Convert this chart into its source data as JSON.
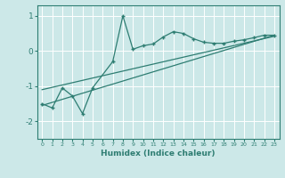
{
  "xlabel": "Humidex (Indice chaleur)",
  "ylabel": "",
  "bg_color": "#cce8e8",
  "line_color": "#2e7d72",
  "xlim": [
    -0.5,
    23.5
  ],
  "ylim": [
    -2.5,
    1.3
  ],
  "x_ticks": [
    0,
    1,
    2,
    3,
    4,
    5,
    6,
    7,
    8,
    9,
    10,
    11,
    12,
    13,
    14,
    15,
    16,
    17,
    18,
    19,
    20,
    21,
    22,
    23
  ],
  "y_ticks": [
    -2,
    -1,
    0,
    1
  ],
  "main_x": [
    0,
    1,
    2,
    3,
    4,
    5,
    7,
    8,
    9,
    10,
    11,
    12,
    13,
    14,
    15,
    16,
    17,
    18,
    19,
    20,
    21,
    22,
    23
  ],
  "main_y": [
    -1.5,
    -1.62,
    -1.05,
    -1.28,
    -1.78,
    -1.05,
    -0.3,
    1.0,
    0.05,
    0.15,
    0.2,
    0.4,
    0.55,
    0.5,
    0.35,
    0.25,
    0.22,
    0.22,
    0.28,
    0.32,
    0.38,
    0.45,
    0.45
  ],
  "trend1_x": [
    0,
    23
  ],
  "trend1_y": [
    -1.55,
    0.45
  ],
  "trend2_x": [
    0,
    23
  ],
  "trend2_y": [
    -1.1,
    0.42
  ]
}
